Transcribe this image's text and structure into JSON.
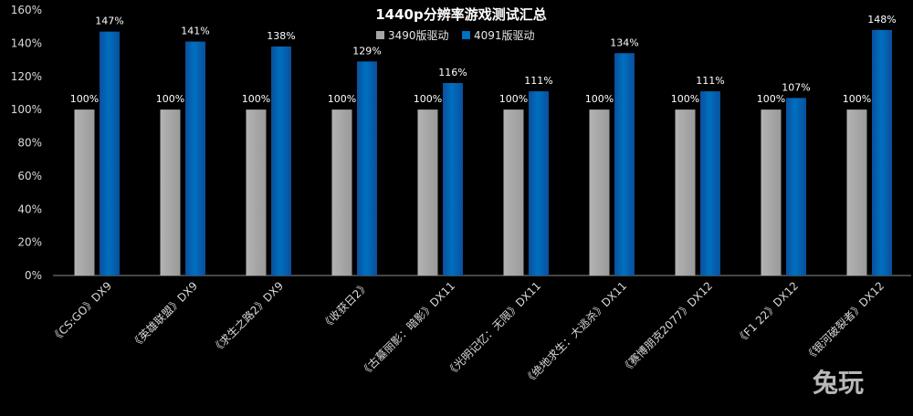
{
  "chart_data": {
    "type": "bar",
    "title": "1440p分辨率游戏测试汇总",
    "categories": [
      "《CS:GO》DX9",
      "《英雄联盟》DX9",
      "《求生之路2》DX9",
      "《收获日2》",
      "《古墓丽影：暗影》DX11",
      "《光明记忆：无限》DX11",
      "《绝地求生：大逃杀》DX11",
      "《赛博朋克2077》DX12",
      "《F1 22》DX12",
      "《银河破裂者》DX12"
    ],
    "series": [
      {
        "name": "3490版驱动",
        "values": [
          100,
          100,
          100,
          100,
          100,
          100,
          100,
          100,
          100,
          100
        ],
        "labels": [
          "100%",
          "100%",
          "100%",
          "100%",
          "100%",
          "100%",
          "100%",
          "100%",
          "100%",
          "100%"
        ],
        "color": "#a6a6a6"
      },
      {
        "name": "4091版驱动",
        "values": [
          147,
          141,
          138,
          129,
          116,
          111,
          134,
          111,
          107,
          148
        ],
        "labels": [
          "147%",
          "141%",
          "138%",
          "129%",
          "116%",
          "111%",
          "134%",
          "111%",
          "107%",
          "148%"
        ],
        "color": "#0070c0"
      }
    ],
    "yticks": [
      "0%",
      "20%",
      "40%",
      "60%",
      "80%",
      "100%",
      "120%",
      "140%",
      "160%"
    ],
    "ylim": [
      0,
      160
    ],
    "ylabel": "",
    "xlabel": "",
    "grid": false,
    "legend": "top-center"
  },
  "watermark": "兔玩"
}
